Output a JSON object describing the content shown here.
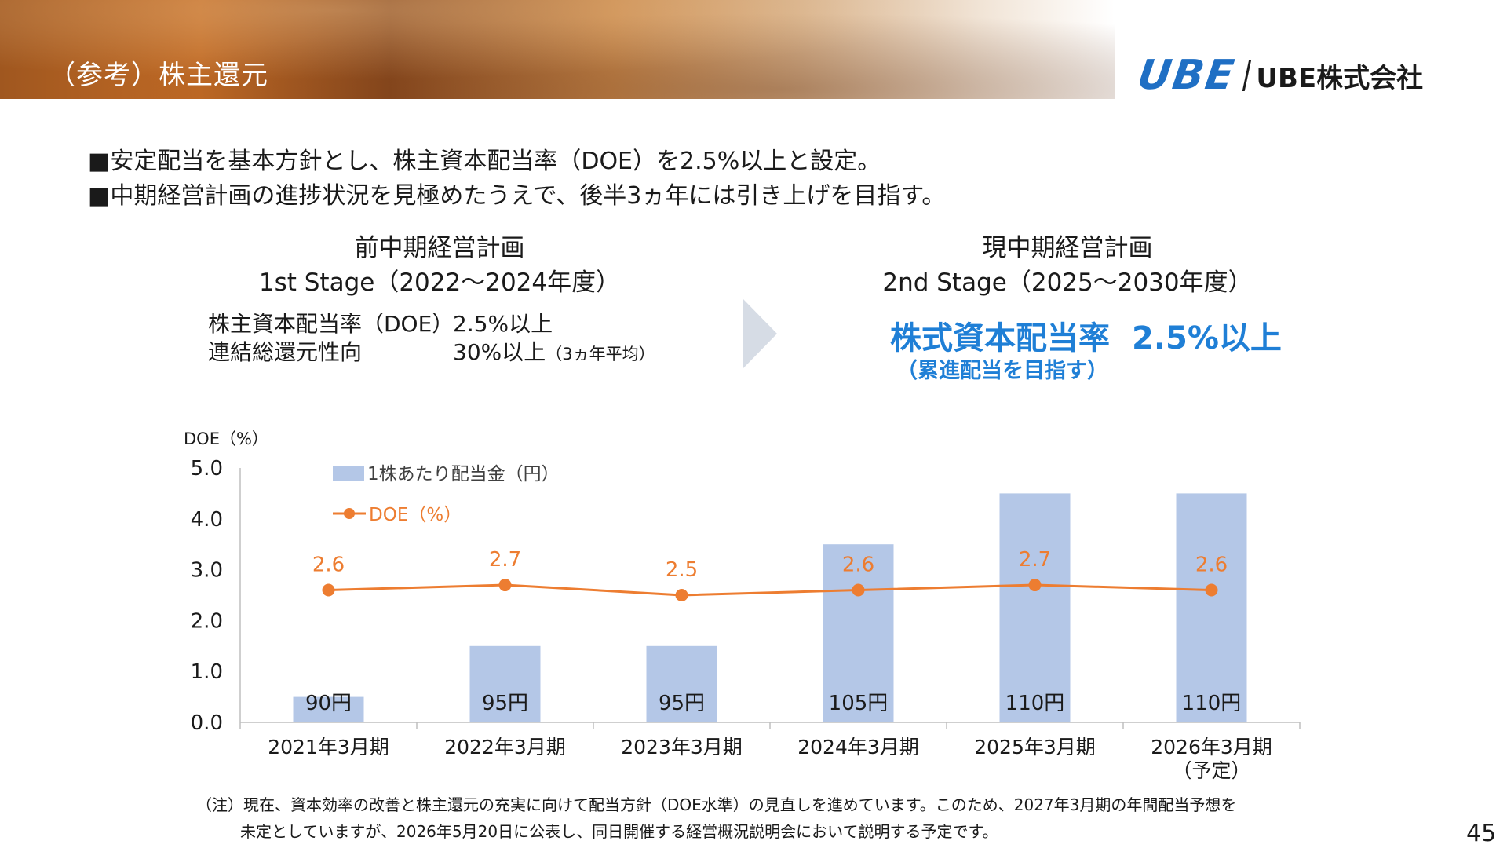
{
  "header": {
    "title": "（参考）株主還元",
    "logo_mark": "UBE",
    "logo_text": "UBE株式会社"
  },
  "bullets": [
    "■安定配当を基本方針とし、株主資本配当率（DOE）を2.5%以上と設定。",
    "■中期経営計画の進捗状況を見極めたうえで、後半3ヵ年には引き上げを目指す。"
  ],
  "stage_left": {
    "title": "前中期経営計画",
    "subtitle": "1st Stage（2022～2024年度）",
    "rows": [
      {
        "label": "株主資本配当率（DOE）",
        "value": "2.5%以上",
        "note": ""
      },
      {
        "label": "連結総還元性向",
        "value": "30%以上",
        "note": "（3ヵ年平均）"
      }
    ]
  },
  "stage_right": {
    "title": "現中期経営計画",
    "subtitle": "2nd Stage（2025～2030年度）",
    "policy_label": "株式資本配当率",
    "policy_value": "2.5%以上",
    "policy_sub": "（累進配当を目指す）"
  },
  "chart_data": {
    "type": "bar",
    "ylabel": "DOE（%）",
    "ylim": [
      0,
      5
    ],
    "yticks": [
      "0.0",
      "1.0",
      "2.0",
      "3.0",
      "4.0",
      "5.0"
    ],
    "categories": [
      "2021年3月期",
      "2022年3月期",
      "2023年3月期",
      "2024年3月期",
      "2025年3月期",
      "2026年3月期"
    ],
    "category_sublabels": [
      "",
      "",
      "",
      "",
      "",
      "（予定）"
    ],
    "series": [
      {
        "name": "1株あたり配当金（円）",
        "type": "bar",
        "values": [
          90,
          95,
          95,
          105,
          110,
          110
        ],
        "labels": [
          "90円",
          "95円",
          "95円",
          "105円",
          "110円",
          "110円"
        ],
        "color": "#b4c7e7"
      },
      {
        "name": "DOE（%）",
        "type": "line",
        "values": [
          2.6,
          2.7,
          2.5,
          2.6,
          2.7,
          2.6
        ],
        "color": "#ed7d31"
      }
    ],
    "legend": [
      "1株あたり配当金（円）",
      "DOE（%）"
    ],
    "legend_position": "top-left"
  },
  "note": {
    "line1": "（注）現在、資本効率の改善と株主還元の充実に向けて配当方針（DOE水準）の見直しを進めています。このため、2027年3月期の年間配当予想を",
    "line2": "未定としていますが、2026年5月20日に公表し、同日開催する経営概況説明会において説明する予定です。"
  },
  "page_number": "45"
}
